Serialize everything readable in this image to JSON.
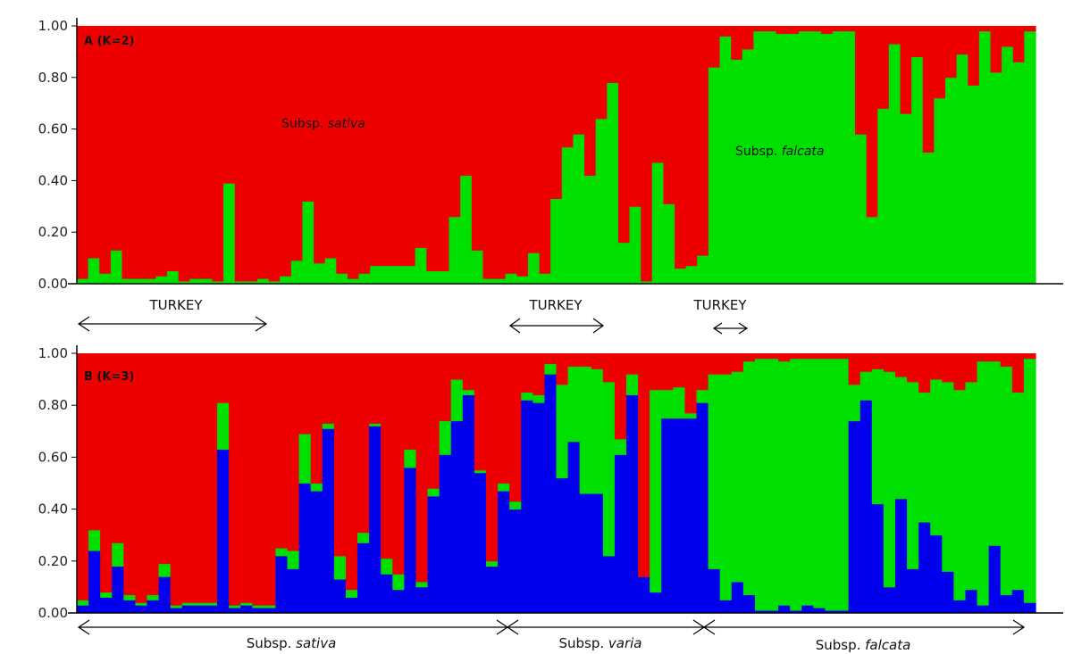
{
  "chart_data": [
    {
      "type": "bar",
      "stacked": true,
      "panel_label": "A (K=2)",
      "ylim": [
        0,
        1
      ],
      "yticks": [
        "0.00",
        "0.20",
        "0.40",
        "0.60",
        "0.80",
        "1.00"
      ],
      "series": [
        {
          "color": "#00e000",
          "values": [
            0.02,
            0.1,
            0.04,
            0.13,
            0.02,
            0.02,
            0.02,
            0.03,
            0.05,
            0.01,
            0.02,
            0.02,
            0.01,
            0.39,
            0.01,
            0.01,
            0.02,
            0.01,
            0.03,
            0.09,
            0.32,
            0.08,
            0.1,
            0.04,
            0.02,
            0.04,
            0.07,
            0.07,
            0.07,
            0.07,
            0.14,
            0.05,
            0.05,
            0.26,
            0.42,
            0.13,
            0.02,
            0.02,
            0.04,
            0.03,
            0.12,
            0.04,
            0.33,
            0.53,
            0.58,
            0.42,
            0.64,
            0.78,
            0.16,
            0.3,
            0.01,
            0.47,
            0.31,
            0.06,
            0.07,
            0.11,
            0.84,
            0.96,
            0.87,
            0.91,
            0.98,
            0.98,
            0.97,
            0.97,
            0.98,
            0.98,
            0.97,
            0.98,
            0.98,
            0.58,
            0.26,
            0.68,
            0.93,
            0.66,
            0.88,
            0.51,
            0.72,
            0.8,
            0.89,
            0.77,
            0.98,
            0.82,
            0.92,
            0.86,
            0.98
          ]
        },
        {
          "color": "#ee0000",
          "values": [
            0.98,
            0.9,
            0.96,
            0.87,
            0.98,
            0.98,
            0.98,
            0.97,
            0.95,
            0.99,
            0.98,
            0.98,
            0.99,
            0.61,
            0.99,
            0.99,
            0.98,
            0.99,
            0.97,
            0.91,
            0.68,
            0.92,
            0.9,
            0.96,
            0.98,
            0.96,
            0.93,
            0.93,
            0.93,
            0.93,
            0.86,
            0.95,
            0.95,
            0.74,
            0.58,
            0.87,
            0.98,
            0.98,
            0.96,
            0.97,
            0.88,
            0.96,
            0.67,
            0.47,
            0.42,
            0.58,
            0.36,
            0.22,
            0.84,
            0.7,
            0.99,
            0.53,
            0.69,
            0.94,
            0.93,
            0.89,
            0.16,
            0.04,
            0.13,
            0.09,
            0.02,
            0.02,
            0.03,
            0.03,
            0.02,
            0.02,
            0.03,
            0.02,
            0.02,
            0.42,
            0.74,
            0.32,
            0.07,
            0.34,
            0.12,
            0.49,
            0.28,
            0.2,
            0.11,
            0.23,
            0.02,
            0.18,
            0.08,
            0.14,
            0.02
          ]
        }
      ],
      "annotations": [
        {
          "prefix": "Subsp. ",
          "italic": "sativa"
        },
        {
          "prefix": "Subsp. ",
          "italic": "falcata"
        }
      ]
    },
    {
      "type": "bar",
      "stacked": true,
      "panel_label": "B (K=3)",
      "ylim": [
        0,
        1
      ],
      "yticks": [
        "0.00",
        "0.20",
        "0.40",
        "0.60",
        "0.80",
        "1.00"
      ],
      "series": [
        {
          "color": "#0000ee",
          "values": [
            0.03,
            0.24,
            0.06,
            0.18,
            0.05,
            0.03,
            0.05,
            0.14,
            0.02,
            0.03,
            0.03,
            0.03,
            0.63,
            0.02,
            0.03,
            0.02,
            0.02,
            0.22,
            0.17,
            0.5,
            0.47,
            0.71,
            0.13,
            0.06,
            0.27,
            0.72,
            0.15,
            0.09,
            0.56,
            0.1,
            0.45,
            0.61,
            0.74,
            0.84,
            0.54,
            0.18,
            0.47,
            0.4,
            0.82,
            0.81,
            0.92,
            0.52,
            0.66,
            0.46,
            0.46,
            0.22,
            0.61,
            0.84,
            0.14,
            0.08,
            0.75,
            0.75,
            0.75,
            0.81,
            0.17,
            0.05,
            0.12,
            0.07,
            0.01,
            0.01,
            0.03,
            0.01,
            0.03,
            0.02,
            0.01,
            0.01,
            0.74,
            0.82,
            0.42,
            0.1,
            0.44,
            0.17,
            0.35,
            0.3,
            0.16,
            0.05,
            0.09,
            0.03,
            0.26,
            0.07,
            0.09,
            0.04
          ]
        },
        {
          "color": "#00e000",
          "values": [
            0.02,
            0.08,
            0.02,
            0.09,
            0.02,
            0.01,
            0.02,
            0.05,
            0.01,
            0.01,
            0.01,
            0.01,
            0.18,
            0.01,
            0.01,
            0.01,
            0.01,
            0.03,
            0.07,
            0.19,
            0.03,
            0.02,
            0.09,
            0.03,
            0.04,
            0.01,
            0.06,
            0.06,
            0.07,
            0.02,
            0.03,
            0.13,
            0.16,
            0.02,
            0.01,
            0.02,
            0.03,
            0.03,
            0.03,
            0.03,
            0.04,
            0.36,
            0.29,
            0.49,
            0.48,
            0.67,
            0.06,
            0.08,
            0.0,
            0.78,
            0.11,
            0.12,
            0.02,
            0.05,
            0.75,
            0.87,
            0.81,
            0.9,
            0.97,
            0.97,
            0.94,
            0.97,
            0.95,
            0.96,
            0.97,
            0.97,
            0.14,
            0.11,
            0.52,
            0.83,
            0.47,
            0.72,
            0.5,
            0.6,
            0.73,
            0.81,
            0.8,
            0.94,
            0.71,
            0.88,
            0.76,
            0.94
          ]
        },
        {
          "color": "#ee0000",
          "values": [
            0.95,
            0.68,
            0.92,
            0.73,
            0.93,
            0.96,
            0.93,
            0.81,
            0.97,
            0.96,
            0.96,
            0.96,
            0.19,
            0.97,
            0.96,
            0.97,
            0.97,
            0.75,
            0.76,
            0.31,
            0.5,
            0.27,
            0.78,
            0.91,
            0.69,
            0.27,
            0.79,
            0.85,
            0.37,
            0.88,
            0.52,
            0.26,
            0.1,
            0.14,
            0.45,
            0.8,
            0.5,
            0.57,
            0.15,
            0.16,
            0.04,
            0.12,
            0.05,
            0.05,
            0.06,
            0.11,
            0.33,
            0.08,
            0.86,
            0.14,
            0.14,
            0.13,
            0.23,
            0.14,
            0.08,
            0.08,
            0.07,
            0.03,
            0.02,
            0.02,
            0.03,
            0.02,
            0.02,
            0.02,
            0.02,
            0.02,
            0.12,
            0.07,
            0.06,
            0.07,
            0.09,
            0.11,
            0.15,
            0.1,
            0.11,
            0.14,
            0.11,
            0.03,
            0.03,
            0.05,
            0.15,
            0.02
          ]
        }
      ]
    }
  ],
  "turkey_labels": [
    "TURKEY",
    "TURKEY",
    "TURKEY"
  ],
  "groups": [
    {
      "prefix": "Subsp. ",
      "italic": "sativa"
    },
    {
      "prefix": "Subsp. ",
      "italic": "varia"
    },
    {
      "prefix": "Subsp. ",
      "italic": "falcata"
    }
  ]
}
